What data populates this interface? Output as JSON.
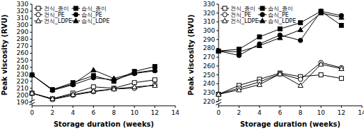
{
  "chart_data": [
    {
      "type": "line",
      "x_label": "Storage duration (weeks)",
      "y_label": "Peak viscosity (RVU)",
      "x": [
        0,
        2,
        4,
        6,
        8,
        10,
        12
      ],
      "xlim": [
        0,
        14
      ],
      "xticks": [
        0,
        2,
        4,
        6,
        8,
        10,
        12,
        14
      ],
      "ylim": [
        185,
        330
      ],
      "yticks": [
        190,
        200,
        210,
        220,
        230,
        240,
        250,
        260,
        270,
        280,
        290,
        300,
        310,
        320,
        330
      ],
      "grid": false,
      "legend": "upper left",
      "series": [
        {
          "name": "건식_종이",
          "color": "#000000",
          "marker": "open-square",
          "values": [
            203,
            195,
            203,
            212,
            210,
            218,
            222
          ]
        },
        {
          "name": "습식_종이",
          "color": "#000000",
          "marker": "filled-square",
          "values": [
            229,
            208,
            218,
            228,
            220,
            234,
            241
          ]
        },
        {
          "name": "건식_PE",
          "color": "#000000",
          "marker": "open-circle",
          "values": [
            203,
            194,
            200,
            205,
            209,
            210,
            215
          ]
        },
        {
          "name": "습식_PE",
          "color": "#000000",
          "marker": "filled-circle",
          "values": [
            229,
            207,
            215,
            225,
            222,
            231,
            235
          ]
        },
        {
          "name": "건식_LDPE",
          "color": "#000000",
          "marker": "open-triangle",
          "values": [
            203,
            195,
            201,
            206,
            209,
            212,
            214
          ]
        },
        {
          "name": "습식_LDPE",
          "color": "#000000",
          "marker": "filled-triangle",
          "values": [
            229,
            208,
            216,
            236,
            224,
            232,
            236
          ]
        }
      ]
    },
    {
      "type": "line",
      "x_label": "Storage duration (weeks)",
      "y_label": "Peak viscosity (RVU)",
      "x": [
        0,
        2,
        4,
        6,
        8,
        10,
        12
      ],
      "xlim": [
        0,
        14
      ],
      "xticks": [
        0,
        2,
        4,
        6,
        8,
        10,
        12,
        14
      ],
      "ylim": [
        215,
        330
      ],
      "yticks": [
        220,
        230,
        240,
        250,
        260,
        270,
        280,
        290,
        300,
        310,
        320,
        330
      ],
      "grid": false,
      "legend": "upper left",
      "series": [
        {
          "name": "건식_종이",
          "color": "#000000",
          "marker": "open-square",
          "values": [
            228,
            238,
            245,
            252,
            248,
            250,
            246
          ]
        },
        {
          "name": "습식_종이",
          "color": "#000000",
          "marker": "filled-square",
          "values": [
            277,
            279,
            293,
            302,
            309,
            322,
            306
          ]
        },
        {
          "name": "건식_PE",
          "color": "#000000",
          "marker": "open-circle",
          "values": [
            228,
            235,
            242,
            251,
            245,
            264,
            258
          ]
        },
        {
          "name": "습식_PE",
          "color": "#000000",
          "marker": "filled-circle",
          "values": [
            277,
            272,
            285,
            295,
            289,
            322,
            317
          ]
        },
        {
          "name": "건식_LDPE",
          "color": "#000000",
          "marker": "open-triangle",
          "values": [
            228,
            233,
            239,
            251,
            238,
            262,
            257
          ]
        },
        {
          "name": "습식_LDPE",
          "color": "#000000",
          "marker": "filled-triangle",
          "values": [
            277,
            276,
            283,
            292,
            301,
            320,
            315
          ]
        }
      ]
    }
  ]
}
